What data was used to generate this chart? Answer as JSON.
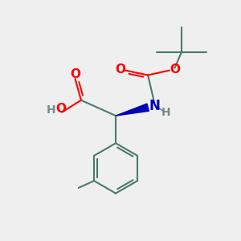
{
  "background_color": "#efefef",
  "atom_colors": {
    "C": "#4a7a6d",
    "O": "#ff0000",
    "N": "#0000bb",
    "H": "#7a8a8a"
  },
  "bond_color": "#4a7a6d",
  "bond_width": 1.5,
  "fig_size": [
    3.0,
    3.0
  ],
  "dpi": 100
}
